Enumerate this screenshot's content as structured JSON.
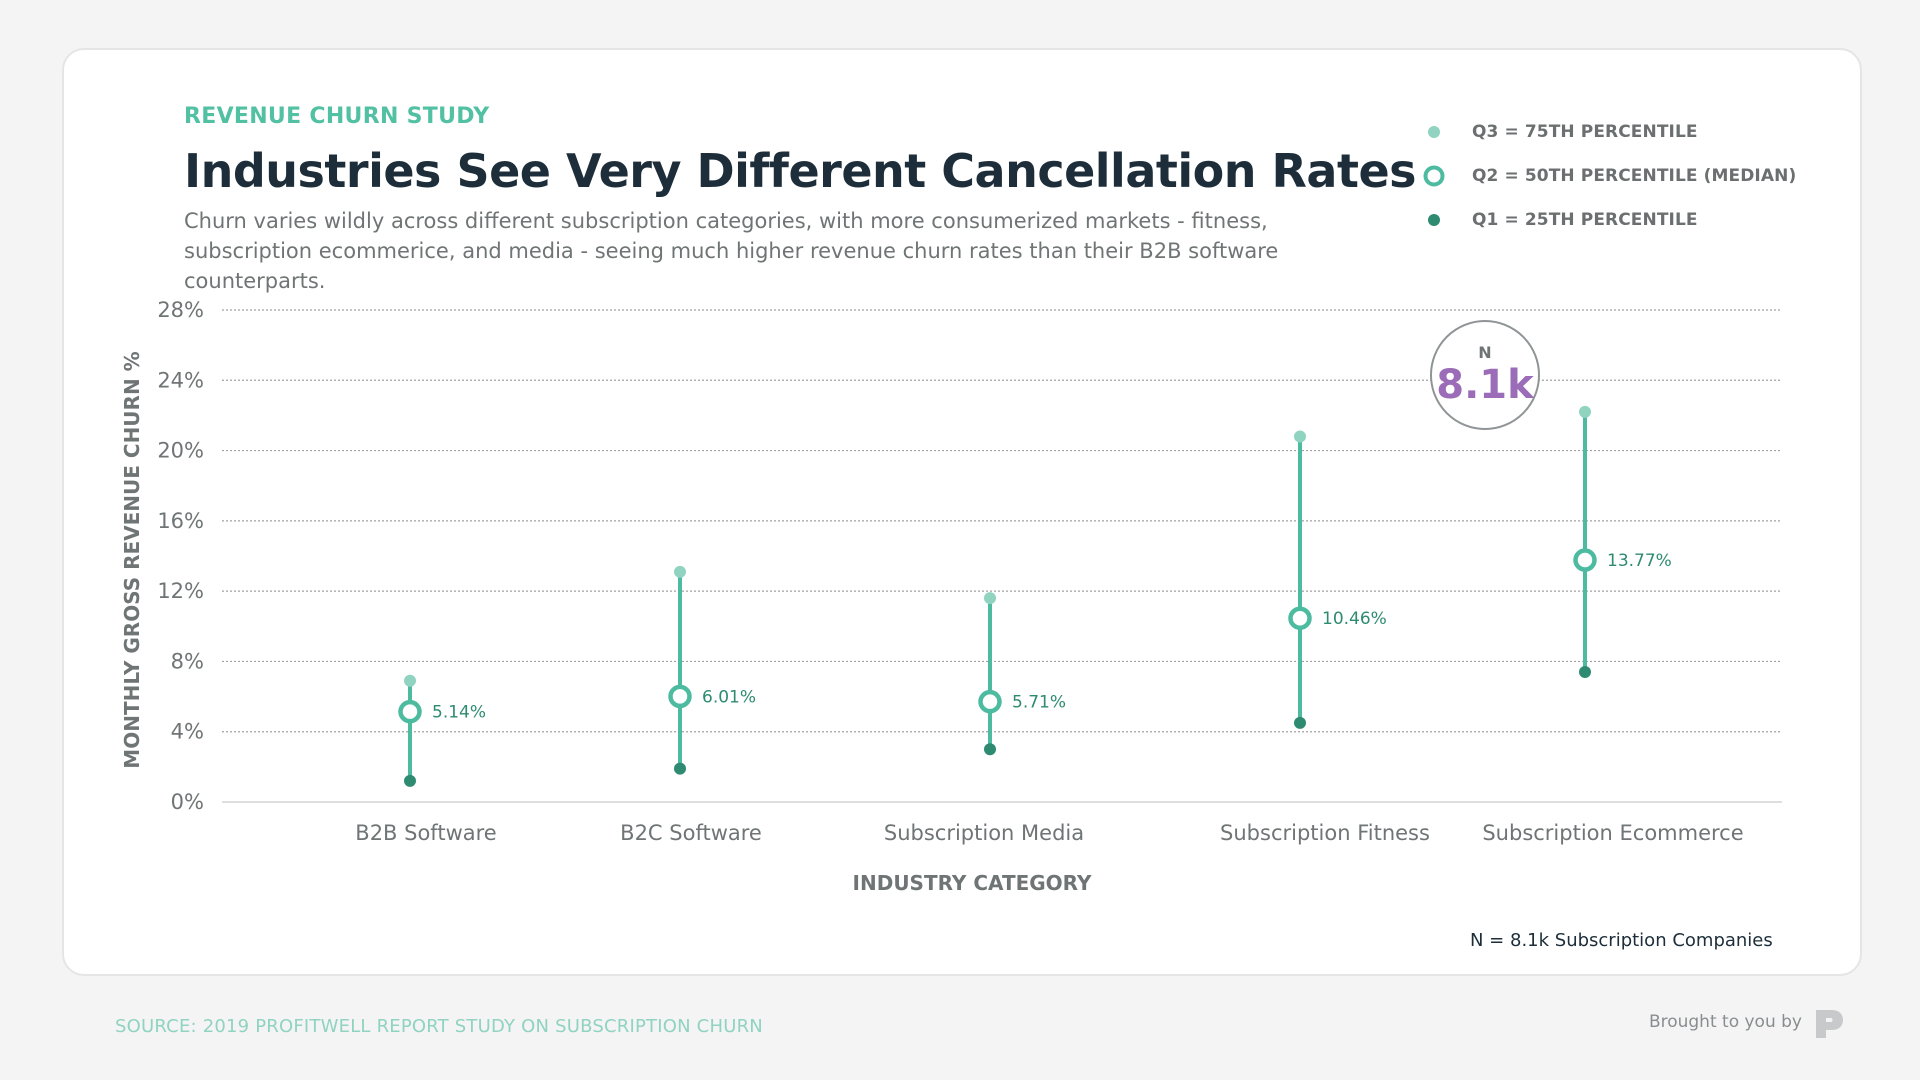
{
  "header": {
    "kicker": "REVENUE CHURN STUDY",
    "title": "Industries See Very Different Cancellation Rates",
    "subtitle": "Churn varies wildly across different subscription categories, with more consumerized markets - fitness, subscription ecommerice, and media - seeing much higher revenue churn rates than their B2B software counterparts."
  },
  "legend": [
    {
      "label": "Q3 = 75TH PERCENTILE",
      "marker": "small-dot-light"
    },
    {
      "label": "Q2 = 50TH PERCENTILE (MEDIAN)",
      "marker": "ring"
    },
    {
      "label": "Q1 = 25TH PERCENTILE",
      "marker": "small-dot-dark"
    }
  ],
  "badge": {
    "label": "N",
    "value": "8.1k"
  },
  "footer": {
    "footnote": "N = 8.1k Subscription Companies",
    "source": "SOURCE: 2019 PROFITWELL REPORT STUDY ON SUBSCRIPTION CHURN",
    "brought_by": "Brought to you by"
  },
  "colors": {
    "accent": "#52c0a2",
    "q3": "#8fd3c0",
    "q2": "#4dbba0",
    "q1": "#2e8b71",
    "badge_value": "#9b6cb8",
    "title": "#1d2e3a",
    "muted": "#6f7475"
  },
  "chart_data": {
    "type": "range",
    "ylabel": "MONTHLY GROSS REVENUE CHURN %",
    "xlabel": "INDUSTRY CATEGORY",
    "ylim": [
      0,
      28
    ],
    "yticks": [
      0,
      4,
      8,
      12,
      16,
      20,
      24,
      28
    ],
    "ytick_labels": [
      "0%",
      "4%",
      "8%",
      "12%",
      "16%",
      "20%",
      "24%",
      "28%"
    ],
    "grid": true,
    "categories": [
      "B2B Software",
      "B2C Software",
      "Subscription Media",
      "Subscription Fitness",
      "Subscription Ecommerce"
    ],
    "series": [
      {
        "name": "Q3 = 75TH PERCENTILE",
        "values": [
          6.9,
          13.1,
          11.6,
          20.8,
          22.2
        ]
      },
      {
        "name": "Q2 = 50TH PERCENTILE (MEDIAN)",
        "values": [
          5.14,
          6.01,
          5.71,
          10.46,
          13.77
        ],
        "labels": [
          "5.14%",
          "6.01%",
          "5.71%",
          "10.46%",
          "13.77%"
        ]
      },
      {
        "name": "Q1 = 25TH PERCENTILE",
        "values": [
          1.2,
          1.9,
          3.0,
          4.5,
          7.4
        ]
      }
    ]
  }
}
